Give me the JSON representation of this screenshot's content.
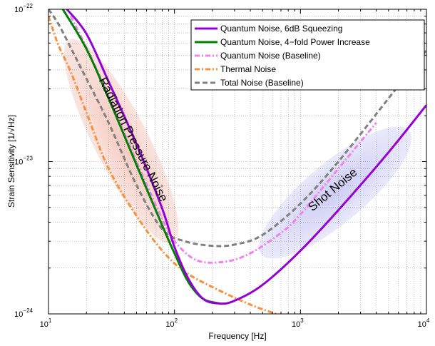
{
  "chart_data": {
    "type": "line",
    "xlabel": "Frequency [Hz]",
    "ylabel": "Strain Sensitivity [1/√Hz]",
    "x_scale": "log",
    "y_scale": "log",
    "xlim": [
      10,
      10000
    ],
    "ylim": [
      1e-24,
      1e-22
    ],
    "grid": true,
    "legend_position": "top-right",
    "x_ticks": [
      {
        "base": "10",
        "exp": "1",
        "value": 10
      },
      {
        "base": "10",
        "exp": "2",
        "value": 100
      },
      {
        "base": "10",
        "exp": "3",
        "value": 1000
      },
      {
        "base": "10",
        "exp": "4",
        "value": 10000
      }
    ],
    "y_ticks": [
      {
        "base": "10",
        "exp": "−24",
        "value": 1e-24
      },
      {
        "base": "10",
        "exp": "−23",
        "value": 1e-23
      },
      {
        "base": "10",
        "exp": "−22",
        "value": 1e-22
      }
    ],
    "series": [
      {
        "name": "Quantum Noise, 6dB Squeezing",
        "color": "#9400d3",
        "style": "solid",
        "x": [
          14,
          20,
          30,
          50,
          80,
          100,
          130,
          170,
          230,
          300,
          500,
          1000,
          2000,
          5000,
          10000
        ],
        "y": [
          1e-22,
          6.9e-23,
          3.35e-23,
          1.3e-23,
          4.9e-24,
          2.75e-24,
          1.68e-24,
          1.25e-24,
          1.17e-24,
          1.22e-24,
          1.55e-24,
          2.6e-24,
          4.8e-24,
          1.15e-23,
          2.35e-23
        ]
      },
      {
        "name": "Quantum Noise, 4−fold Power Increase",
        "color": "#008000",
        "style": "solid",
        "x": [
          13,
          20,
          30,
          50,
          80,
          100,
          130,
          170,
          230
        ],
        "y": [
          1e-22,
          5.5e-23,
          2.6e-23,
          9.5e-24,
          3.8e-24,
          2.5e-24,
          1.6e-24,
          1.25e-24,
          1.17e-24
        ]
      },
      {
        "name": "Quantum Noise (Baseline)",
        "color": "#ee82ee",
        "style": "dashdot",
        "x": [
          15,
          20,
          30,
          50,
          80,
          100,
          150,
          250,
          400,
          700,
          1000,
          2000,
          4000
        ],
        "y": [
          9e-23,
          5.6e-23,
          2.7e-23,
          1e-23,
          4.2e-24,
          3e-24,
          2.25e-24,
          2.2e-24,
          2.5e-24,
          3.4e-24,
          4.5e-24,
          9e-24,
          1.8e-23
        ]
      },
      {
        "name": "Thermal Noise",
        "color": "#f5903f",
        "style": "dashdot",
        "x": [
          10,
          12,
          15,
          20,
          30,
          50,
          80,
          120,
          200,
          400,
          640
        ],
        "y": [
          9e-23,
          5.8e-23,
          3.9e-23,
          2.1e-23,
          9e-24,
          4.4e-24,
          2.6e-24,
          1.9e-24,
          1.5e-24,
          1.15e-24,
          1e-24
        ]
      },
      {
        "name": "Total Noise (Baseline)",
        "color": "#808080",
        "style": "dashed",
        "x": [
          10,
          12,
          15,
          20,
          30,
          50,
          80,
          120,
          200,
          300,
          500,
          1000,
          2000,
          5000,
          10000
        ],
        "y": [
          1e-22,
          8e-23,
          5.6e-23,
          3.5e-23,
          1.8e-23,
          7e-24,
          3.6e-24,
          3e-24,
          2.8e-24,
          2.85e-24,
          3.3e-24,
          5.3e-24,
          1e-23,
          2.6e-23,
          5.4e-23
        ]
      }
    ],
    "annotations": [
      {
        "text": "Radiation Pressure Noise",
        "color": "#e06a50"
      },
      {
        "text": "Shot Noise",
        "color": "#6b6bdb"
      }
    ]
  }
}
